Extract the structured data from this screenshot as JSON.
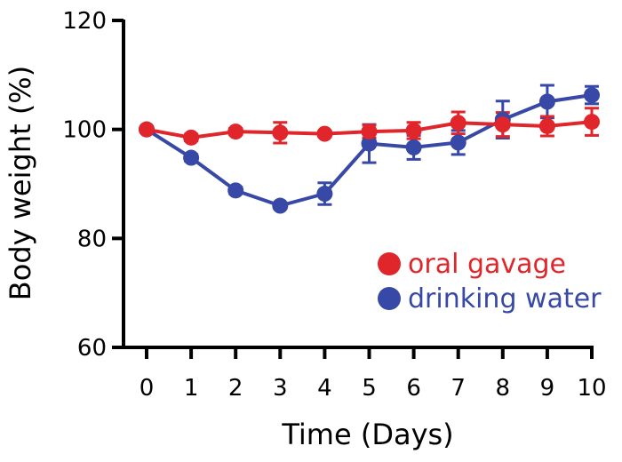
{
  "chart_data": {
    "type": "line",
    "xlabel": "Time (Days)",
    "ylabel": "Body weight (%)",
    "xlim": [
      0,
      10
    ],
    "ylim": [
      60,
      120
    ],
    "x_ticks": [
      "0",
      "1",
      "2",
      "3",
      "4",
      "5",
      "6",
      "7",
      "8",
      "9",
      "10"
    ],
    "y_ticks": [
      "60",
      "80",
      "100",
      "120"
    ],
    "grid": false,
    "legend_position": "lower-right",
    "x": [
      0,
      1,
      2,
      3,
      4,
      5,
      6,
      7,
      8,
      9,
      10
    ],
    "series": [
      {
        "name": "oral gavage",
        "color": "#e0252b",
        "values": [
          100,
          98.5,
          99.6,
          99.4,
          99.2,
          99.6,
          99.8,
          101.2,
          100.9,
          100.6,
          101.4
        ],
        "error": [
          0.5,
          0.6,
          0.6,
          1.9,
          0.5,
          1.2,
          1.5,
          2.0,
          2.2,
          1.8,
          2.5
        ]
      },
      {
        "name": "drinking water",
        "color": "#3748a6",
        "values": [
          100,
          94.8,
          88.8,
          86.0,
          88.2,
          97.4,
          96.7,
          97.6,
          101.8,
          105.1,
          106.3
        ],
        "error": [
          0.4,
          0.6,
          0.6,
          0.5,
          2.0,
          3.5,
          2.2,
          2.2,
          3.4,
          3.0,
          1.6
        ]
      }
    ]
  }
}
